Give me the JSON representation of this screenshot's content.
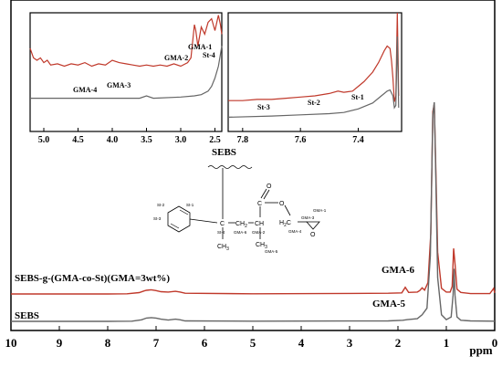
{
  "chart_data": {
    "type": "line",
    "main": {
      "xlabel": "ppm",
      "xlim": [
        10,
        0
      ],
      "x_ticks": [
        "10",
        "9",
        "8",
        "7",
        "6",
        "5",
        "4",
        "3",
        "2",
        "1",
        "0"
      ],
      "series": [
        {
          "name": "SEBS-g-(GMA-co-St)(GMA=3wt%)",
          "color": "#c0392b",
          "x": [
            10,
            8,
            7.6,
            7.35,
            7.25,
            7.2,
            7.1,
            7.0,
            6.9,
            6.75,
            6.6,
            6.5,
            6.4,
            5,
            3,
            2.2,
            1.92,
            1.85,
            1.78,
            1.6,
            1.55,
            1.5,
            1.45,
            1.38,
            1.32,
            1.28,
            1.25,
            1.22,
            1.18,
            1.1,
            1.0,
            0.92,
            0.88,
            0.85,
            0.82,
            0.78,
            0.7,
            0.5,
            0.1,
            0.02,
            0
          ],
          "y": [
            0,
            0,
            0.001,
            0.007,
            0.016,
            0.019,
            0.022,
            0.018,
            0.012,
            0.01,
            0.014,
            0.01,
            0.004,
            0.001,
            0.003,
            0.004,
            0.006,
            0.035,
            0.008,
            0.01,
            0.018,
            0.032,
            0.02,
            0.06,
            0.32,
            0.96,
            1.0,
            0.7,
            0.22,
            0.03,
            0.01,
            0.01,
            0.04,
            0.24,
            0.16,
            0.025,
            0.008,
            0.002,
            0.002,
            0.03,
            0.006
          ]
        },
        {
          "name": "SEBS",
          "color": "#666666",
          "x": [
            10,
            8,
            7.5,
            7.3,
            7.2,
            7.1,
            7.0,
            6.9,
            6.75,
            6.6,
            6.5,
            6.4,
            5,
            2.2,
            1.9,
            1.8,
            1.6,
            1.5,
            1.4,
            1.33,
            1.28,
            1.25,
            1.22,
            1.18,
            1.1,
            1.0,
            0.9,
            0.86,
            0.84,
            0.82,
            0.78,
            0.7,
            0.5,
            0
          ],
          "y": [
            0,
            0,
            0.001,
            0.007,
            0.015,
            0.017,
            0.015,
            0.01,
            0.006,
            0.01,
            0.007,
            0.002,
            0.001,
            0.002,
            0.005,
            0.008,
            0.012,
            0.03,
            0.06,
            0.3,
            0.94,
            1.0,
            0.7,
            0.2,
            0.03,
            0.008,
            0.02,
            0.12,
            0.24,
            0.12,
            0.02,
            0.005,
            0.002,
            0.001
          ]
        }
      ],
      "annotations": {
        "sebs_label": "SEBS",
        "grafted_label": "SEBS-g-(GMA-co-St)(GMA=3wt%)",
        "gma6": "GMA-6",
        "gma5": "GMA-5"
      }
    },
    "inset_left": {
      "xlim": [
        5.2,
        2.4
      ],
      "x_ticks": [
        "5.0",
        "4.5",
        "4.0",
        "3.5",
        "3.0",
        "2.5"
      ],
      "labels": [
        "GMA-4",
        "GMA-3",
        "GMA-2",
        "GMA-1",
        "St-4"
      ],
      "series": [
        {
          "name": "SEBS-g-(GMA-co-St)(GMA=3wt%)",
          "x": [
            5.2,
            5.15,
            5.1,
            5.05,
            5.0,
            4.95,
            4.9,
            4.8,
            4.7,
            4.6,
            4.5,
            4.4,
            4.3,
            4.2,
            4.1,
            4.0,
            3.9,
            3.8,
            3.7,
            3.6,
            3.5,
            3.4,
            3.3,
            3.2,
            3.1,
            3.0,
            2.9,
            2.85,
            2.8,
            2.78,
            2.75,
            2.7,
            2.65,
            2.6,
            2.55,
            2.5,
            2.45,
            2.42,
            2.4
          ],
          "y": [
            0.7,
            0.62,
            0.6,
            0.62,
            0.58,
            0.6,
            0.56,
            0.57,
            0.55,
            0.57,
            0.56,
            0.58,
            0.55,
            0.57,
            0.56,
            0.6,
            0.58,
            0.57,
            0.56,
            0.55,
            0.56,
            0.55,
            0.56,
            0.55,
            0.57,
            0.55,
            0.58,
            0.62,
            0.9,
            0.85,
            0.72,
            0.88,
            0.82,
            0.92,
            0.95,
            0.85,
            0.98,
            0.9,
            0.82
          ]
        },
        {
          "name": "SEBS",
          "x": [
            5.2,
            5.0,
            4.5,
            4.0,
            3.6,
            3.5,
            3.4,
            3.0,
            2.8,
            2.7,
            2.6,
            2.55,
            2.5,
            2.45,
            2.42,
            2.4
          ],
          "y": [
            0.28,
            0.28,
            0.28,
            0.28,
            0.28,
            0.3,
            0.28,
            0.29,
            0.3,
            0.31,
            0.34,
            0.38,
            0.45,
            0.55,
            0.65,
            0.72
          ]
        }
      ]
    },
    "inset_right": {
      "xlim": [
        7.85,
        7.25
      ],
      "x_ticks": [
        "7.8",
        "7.6",
        "7.4"
      ],
      "labels": [
        "St-3",
        "St-2",
        "St-1"
      ],
      "series": [
        {
          "name": "SEBS-g-(GMA-co-St)(GMA=3wt%)",
          "x": [
            7.85,
            7.8,
            7.75,
            7.7,
            7.65,
            7.6,
            7.55,
            7.5,
            7.47,
            7.45,
            7.42,
            7.4,
            7.38,
            7.35,
            7.33,
            7.31,
            7.3,
            7.29,
            7.285,
            7.28,
            7.275,
            7.27,
            7.265,
            7.262,
            7.26
          ],
          "y": [
            0.26,
            0.26,
            0.27,
            0.27,
            0.28,
            0.29,
            0.3,
            0.32,
            0.34,
            0.33,
            0.34,
            0.38,
            0.42,
            0.5,
            0.58,
            0.68,
            0.72,
            0.7,
            0.6,
            0.45,
            0.25,
            0.3,
            1.2,
            0.6,
            0.3
          ]
        },
        {
          "name": "SEBS",
          "x": [
            7.85,
            7.7,
            7.6,
            7.5,
            7.45,
            7.4,
            7.35,
            7.32,
            7.3,
            7.29,
            7.28,
            7.275,
            7.27,
            7.265,
            7.262,
            7.26
          ],
          "y": [
            0.12,
            0.13,
            0.14,
            0.15,
            0.16,
            0.19,
            0.24,
            0.3,
            0.34,
            0.35,
            0.3,
            0.2,
            0.22,
            0.8,
            0.45,
            0.2
          ]
        }
      ]
    }
  },
  "structure": {
    "label": "SEBS",
    "atoms": {
      "st1": "St-1",
      "st2": "St-2",
      "st3": "St-3",
      "st4": "St-4",
      "c1": "C",
      "ch3a": "CH",
      "ch3a_sub": "3",
      "ch2": "CH",
      "ch2_sub": "2",
      "ch": "CH",
      "ch3b": "CH",
      "ch3b_sub": "3",
      "gma6": "GMA-6",
      "gma2": "GMA-2",
      "gma5": "GMA-5",
      "c_carbonyl": "C",
      "o_carbonyl": "O",
      "o_ester": "O",
      "h2c": "H",
      "h2c_sub": "2",
      "h2c_c": "C",
      "gma4": "GMA-4",
      "gma3": "GMA-3",
      "gma1": "GMA-1",
      "o_epoxy": "O"
    }
  }
}
